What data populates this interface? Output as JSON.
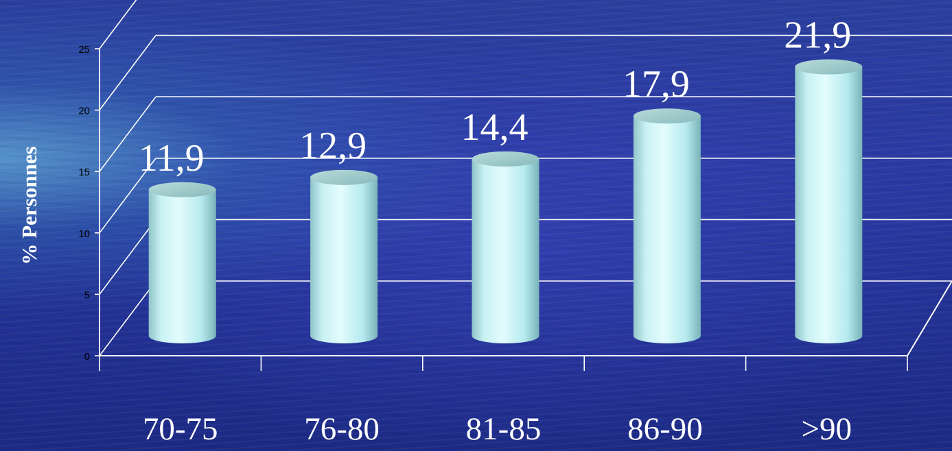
{
  "chart_data": {
    "type": "bar",
    "style": "3d-cylinder",
    "categories": [
      "70-75",
      "76-80",
      "81-85",
      "86-90",
      ">90"
    ],
    "values": [
      11.9,
      12.9,
      14.4,
      17.9,
      21.9
    ],
    "data_labels": [
      "11,9",
      "12,9",
      "14,4",
      "17,9",
      "21,9"
    ],
    "title": "",
    "xlabel": "",
    "ylabel": "% Personnes",
    "ylim": [
      0,
      25
    ],
    "yticks": [
      0,
      5,
      10,
      15,
      20,
      25
    ],
    "ytick_labels": [
      "0",
      "5",
      "10",
      "15",
      "20",
      "25"
    ],
    "grid": true,
    "legend": "none",
    "colors": {
      "bar_light": "#e3fcfd",
      "bar_mid": "#b6eaee",
      "bar_dark": "#78b3b9",
      "bar_top": "#9cc9c9",
      "gridline": "#ffffff",
      "axis": "#ffffff",
      "text": "#ffffff",
      "tick_text": "#000000"
    }
  }
}
